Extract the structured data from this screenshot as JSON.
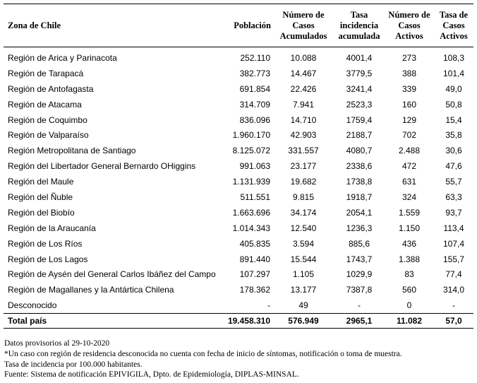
{
  "table": {
    "header": [
      "Zona de Chile",
      "Población",
      "Número de Casos Acumulados",
      "Tasa incidencia acumulada",
      "Número de Casos Activos",
      "Tasa de Casos Activos"
    ],
    "rows": [
      [
        "Región de Arica y Parinacota",
        "252.110",
        "10.088",
        "4001,4",
        "273",
        "108,3"
      ],
      [
        "Región de Tarapacá",
        "382.773",
        "14.467",
        "3779,5",
        "388",
        "101,4"
      ],
      [
        "Región de Antofagasta",
        "691.854",
        "22.426",
        "3241,4",
        "339",
        "49,0"
      ],
      [
        "Región de Atacama",
        "314.709",
        "7.941",
        "2523,3",
        "160",
        "50,8"
      ],
      [
        "Región de Coquimbo",
        "836.096",
        "14.710",
        "1759,4",
        "129",
        "15,4"
      ],
      [
        "Región de Valparaíso",
        "1.960.170",
        "42.903",
        "2188,7",
        "702",
        "35,8"
      ],
      [
        "Región Metropolitana de Santiago",
        "8.125.072",
        "331.557",
        "4080,7",
        "2.488",
        "30,6"
      ],
      [
        "Región del Libertador General Bernardo OHiggins",
        "991.063",
        "23.177",
        "2338,6",
        "472",
        "47,6"
      ],
      [
        "Región del Maule",
        "1.131.939",
        "19.682",
        "1738,8",
        "631",
        "55,7"
      ],
      [
        "Región del Ñuble",
        "511.551",
        "9.815",
        "1918,7",
        "324",
        "63,3"
      ],
      [
        "Región del Biobío",
        "1.663.696",
        "34.174",
        "2054,1",
        "1.559",
        "93,7"
      ],
      [
        "Región de la Araucanía",
        "1.014.343",
        "12.540",
        "1236,3",
        "1.150",
        "113,4"
      ],
      [
        "Región de Los Ríos",
        "405.835",
        "3.594",
        "885,6",
        "436",
        "107,4"
      ],
      [
        "Región de Los Lagos",
        "891.440",
        "15.544",
        "1743,7",
        "1.388",
        "155,7"
      ],
      [
        "Región de Aysén del General Carlos Ibáñez del Campo",
        "107.297",
        "1.105",
        "1029,9",
        "83",
        "77,4"
      ],
      [
        "Región de Magallanes y la Antártica Chilena",
        "178.362",
        "13.177",
        "7387,8",
        "560",
        "314,0"
      ],
      [
        "Desconocido",
        "-",
        "49",
        "-",
        "0",
        "-"
      ]
    ],
    "total": [
      "Total país",
      "19.458.310",
      "576.949",
      "2965,1",
      "11.082",
      "57,0"
    ]
  },
  "notes": [
    "Datos provisorios al 29-10-2020",
    "*Un caso con región de residencia desconocida no cuenta con fecha de inicio de síntomas, notificación o toma de muestra.",
    "Tasa de incidencia por 100.000 habitantes.",
    "Fuente: Sistema de notificación EPIVIGILA, Dpto. de Epidemiología, DIPLAS-MINSAL."
  ]
}
